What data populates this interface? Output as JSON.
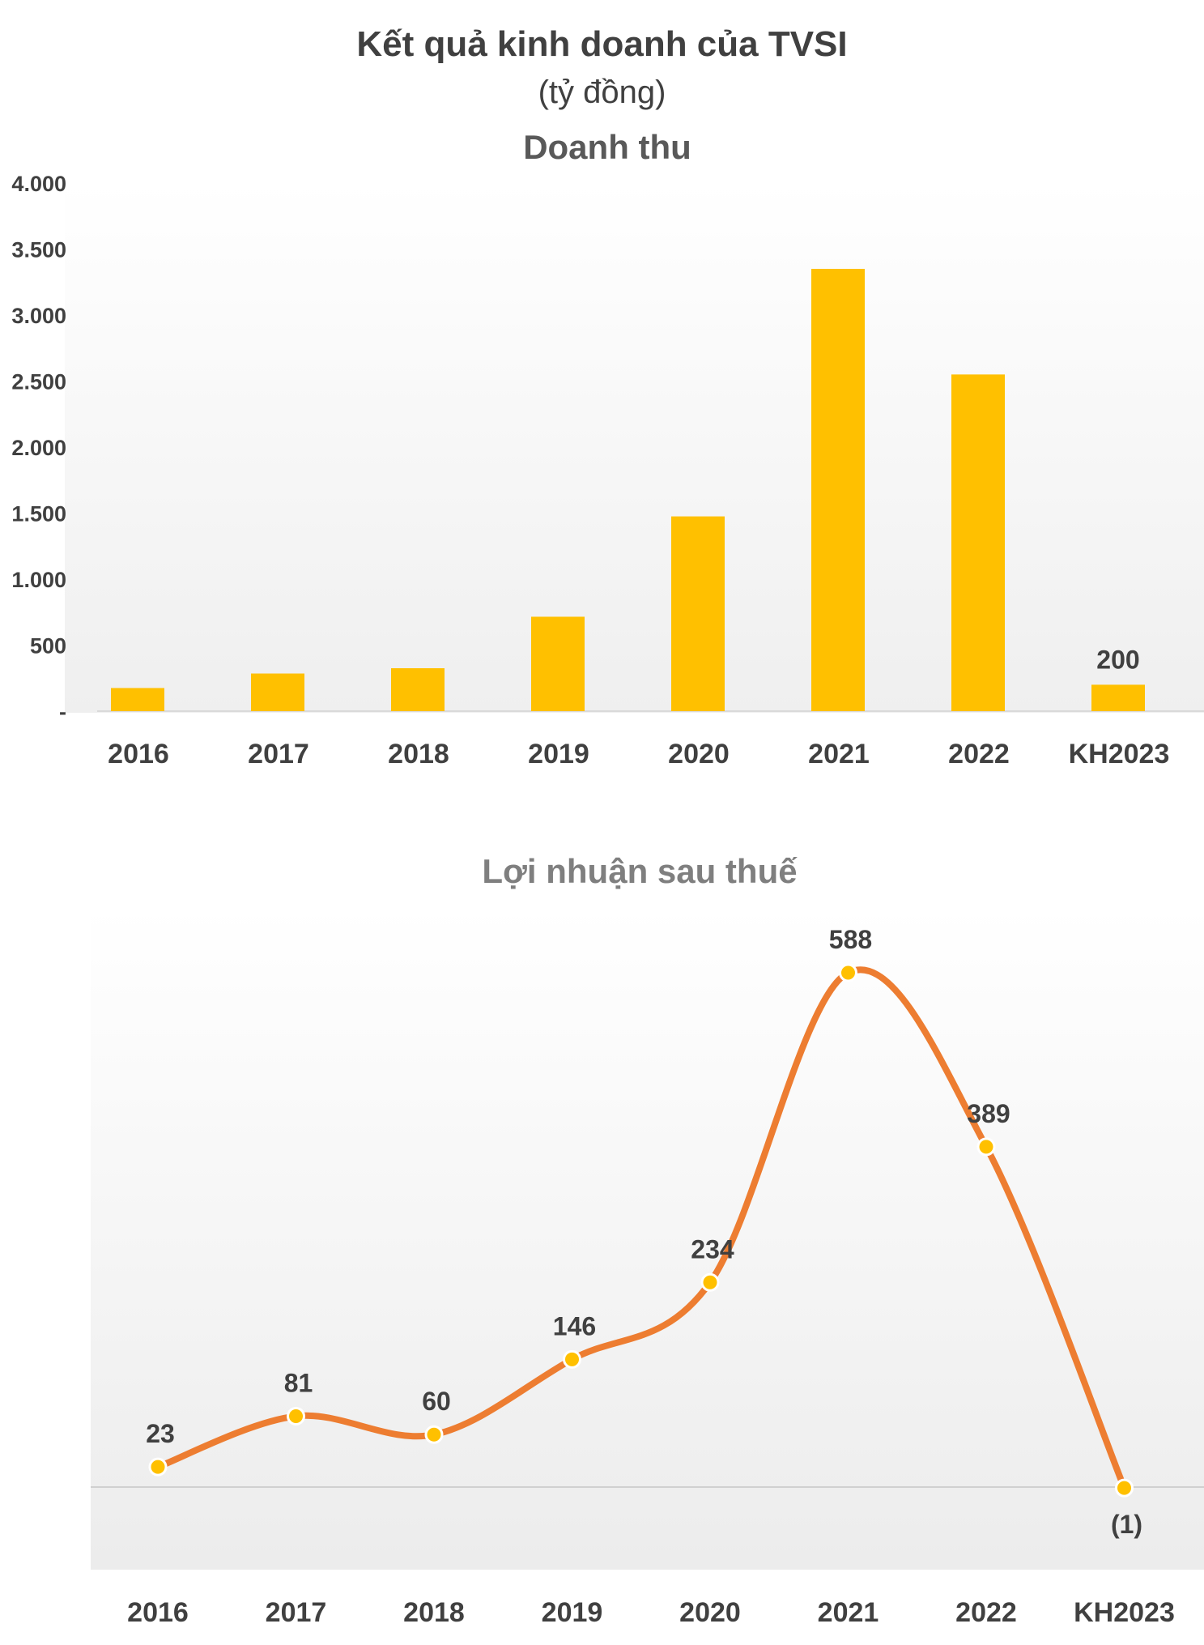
{
  "header": {
    "title": "Kết quả kinh doanh của TVSI",
    "unit": "(tỷ đồng)"
  },
  "chart_data": [
    {
      "type": "bar",
      "title": "Doanh thu",
      "categories": [
        "2016",
        "2017",
        "2018",
        "2019",
        "2020",
        "2021",
        "2022",
        "KH2023"
      ],
      "values": [
        175,
        285,
        325,
        715,
        1475,
        3350,
        2550,
        200
      ],
      "data_labels": [
        {
          "index": 7,
          "text": "200"
        }
      ],
      "ylim": [
        0,
        4000
      ],
      "yticks": [
        {
          "value": 0,
          "label": "-"
        },
        {
          "value": 500,
          "label": "500"
        },
        {
          "value": 1000,
          "label": "1.000"
        },
        {
          "value": 1500,
          "label": "1.500"
        },
        {
          "value": 2000,
          "label": "2.000"
        },
        {
          "value": 2500,
          "label": "2.500"
        },
        {
          "value": 3000,
          "label": "3.000"
        },
        {
          "value": 3500,
          "label": "3.500"
        },
        {
          "value": 4000,
          "label": "4.000"
        }
      ],
      "bar_color": "#ffc000",
      "grid": false,
      "legend": "none"
    },
    {
      "type": "line",
      "title": "Lợi nhuận sau thuế",
      "categories": [
        "2016",
        "2017",
        "2018",
        "2019",
        "2020",
        "2021",
        "2022",
        "KH2023"
      ],
      "values": [
        23,
        81,
        60,
        146,
        234,
        588,
        389,
        -1
      ],
      "data_labels": [
        "23",
        "81",
        "60",
        "146",
        "234",
        "588",
        "389",
        "(1)"
      ],
      "line_color": "#ed7d31",
      "marker_color": "#ffc000",
      "smooth": true,
      "grid": false,
      "legend": "none"
    }
  ]
}
